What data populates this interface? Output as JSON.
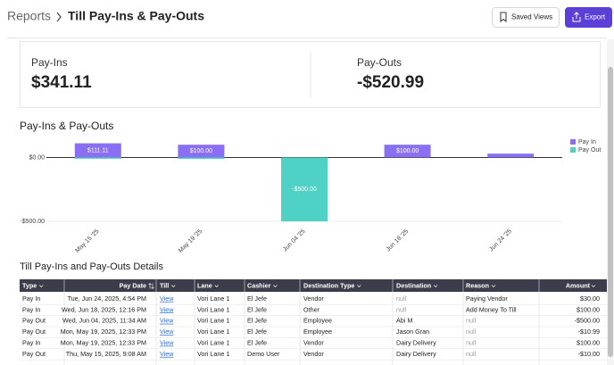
{
  "header": {
    "breadcrumb": "Reports",
    "title": "Till Pay-Ins & Pay-Outs",
    "buttons": [
      "Saved Views",
      "Export"
    ]
  },
  "summary": [
    {
      "label": "Pay-Ins",
      "value": "$341.11"
    },
    {
      "label": "Pay-Outs",
      "value": "-$520.99"
    }
  ],
  "chart_data": {
    "type": "bar",
    "title": "Pay-Ins & Pay-Outs",
    "categories": [
      "May 15 '25",
      "May 19 '25",
      "Jun 04 '25",
      "Jun 18 '25",
      "Jun 24 '25"
    ],
    "series": [
      {
        "name": "Pay In",
        "color": "#8b6ff2",
        "values": [
          111.11,
          100,
          null,
          100,
          30
        ],
        "value_labels": [
          "$111.11",
          "$100.00",
          null,
          "$100.00",
          null
        ]
      },
      {
        "name": "Pay Out",
        "color": "#4fd1c5",
        "values": [
          -10,
          -10.99,
          -500,
          null,
          null
        ],
        "value_labels": [
          null,
          null,
          "-$500.00",
          null,
          null
        ]
      }
    ],
    "ylim": [
      -500,
      150
    ],
    "yticks": [
      {
        "value": 0,
        "label": "$0.00"
      },
      {
        "value": -500,
        "label": "-$500.00"
      }
    ],
    "grid": true,
    "legend": "top-right"
  },
  "table": {
    "title": "Till Pay-Ins and Pay-Outs Details",
    "columns": [
      "Type",
      "Pay Date",
      "Till",
      "Lane",
      "Cashier",
      "Destination Type",
      "Destination",
      "Reason",
      "Amount"
    ],
    "rows": [
      [
        "Pay In",
        "Tue, Jun 24, 2025, 4:54 PM",
        "View",
        "Vori Lane 1",
        "El Jefe",
        "Vendor",
        "null",
        "Paying Vendor",
        "$30.00"
      ],
      [
        "Pay In",
        "Wed, Jun 18, 2025, 12:16 PM",
        "View",
        "Vori Lane 1",
        "El Jefe",
        "Other",
        "null",
        "Add Money To Till",
        "$100.00"
      ],
      [
        "Pay Out",
        "Wed, Jun 04, 2025, 11:34 AM",
        "View",
        "Vori Lane 1",
        "El Jefe",
        "Employee",
        "Abi M",
        "null",
        "-$500.00"
      ],
      [
        "Pay Out",
        "Mon, May 19, 2025, 12:33 PM",
        "View",
        "Vori Lane 1",
        "El Jefe",
        "Employee",
        "Jason Gran",
        "null",
        "-$10.99"
      ],
      [
        "Pay In",
        "Mon, May 19, 2025, 12:33 PM",
        "View",
        "Vori Lane 1",
        "El Jefe",
        "Vendor",
        "Dairy Delivery",
        "null",
        "$100.00"
      ],
      [
        "Pay Out",
        "Thu, May 15, 2025, 9:08 AM",
        "View",
        "Vori Lane 1",
        "Demo User",
        "Vendor",
        "Dairy Delivery",
        "null",
        "-$10.00"
      ]
    ]
  }
}
